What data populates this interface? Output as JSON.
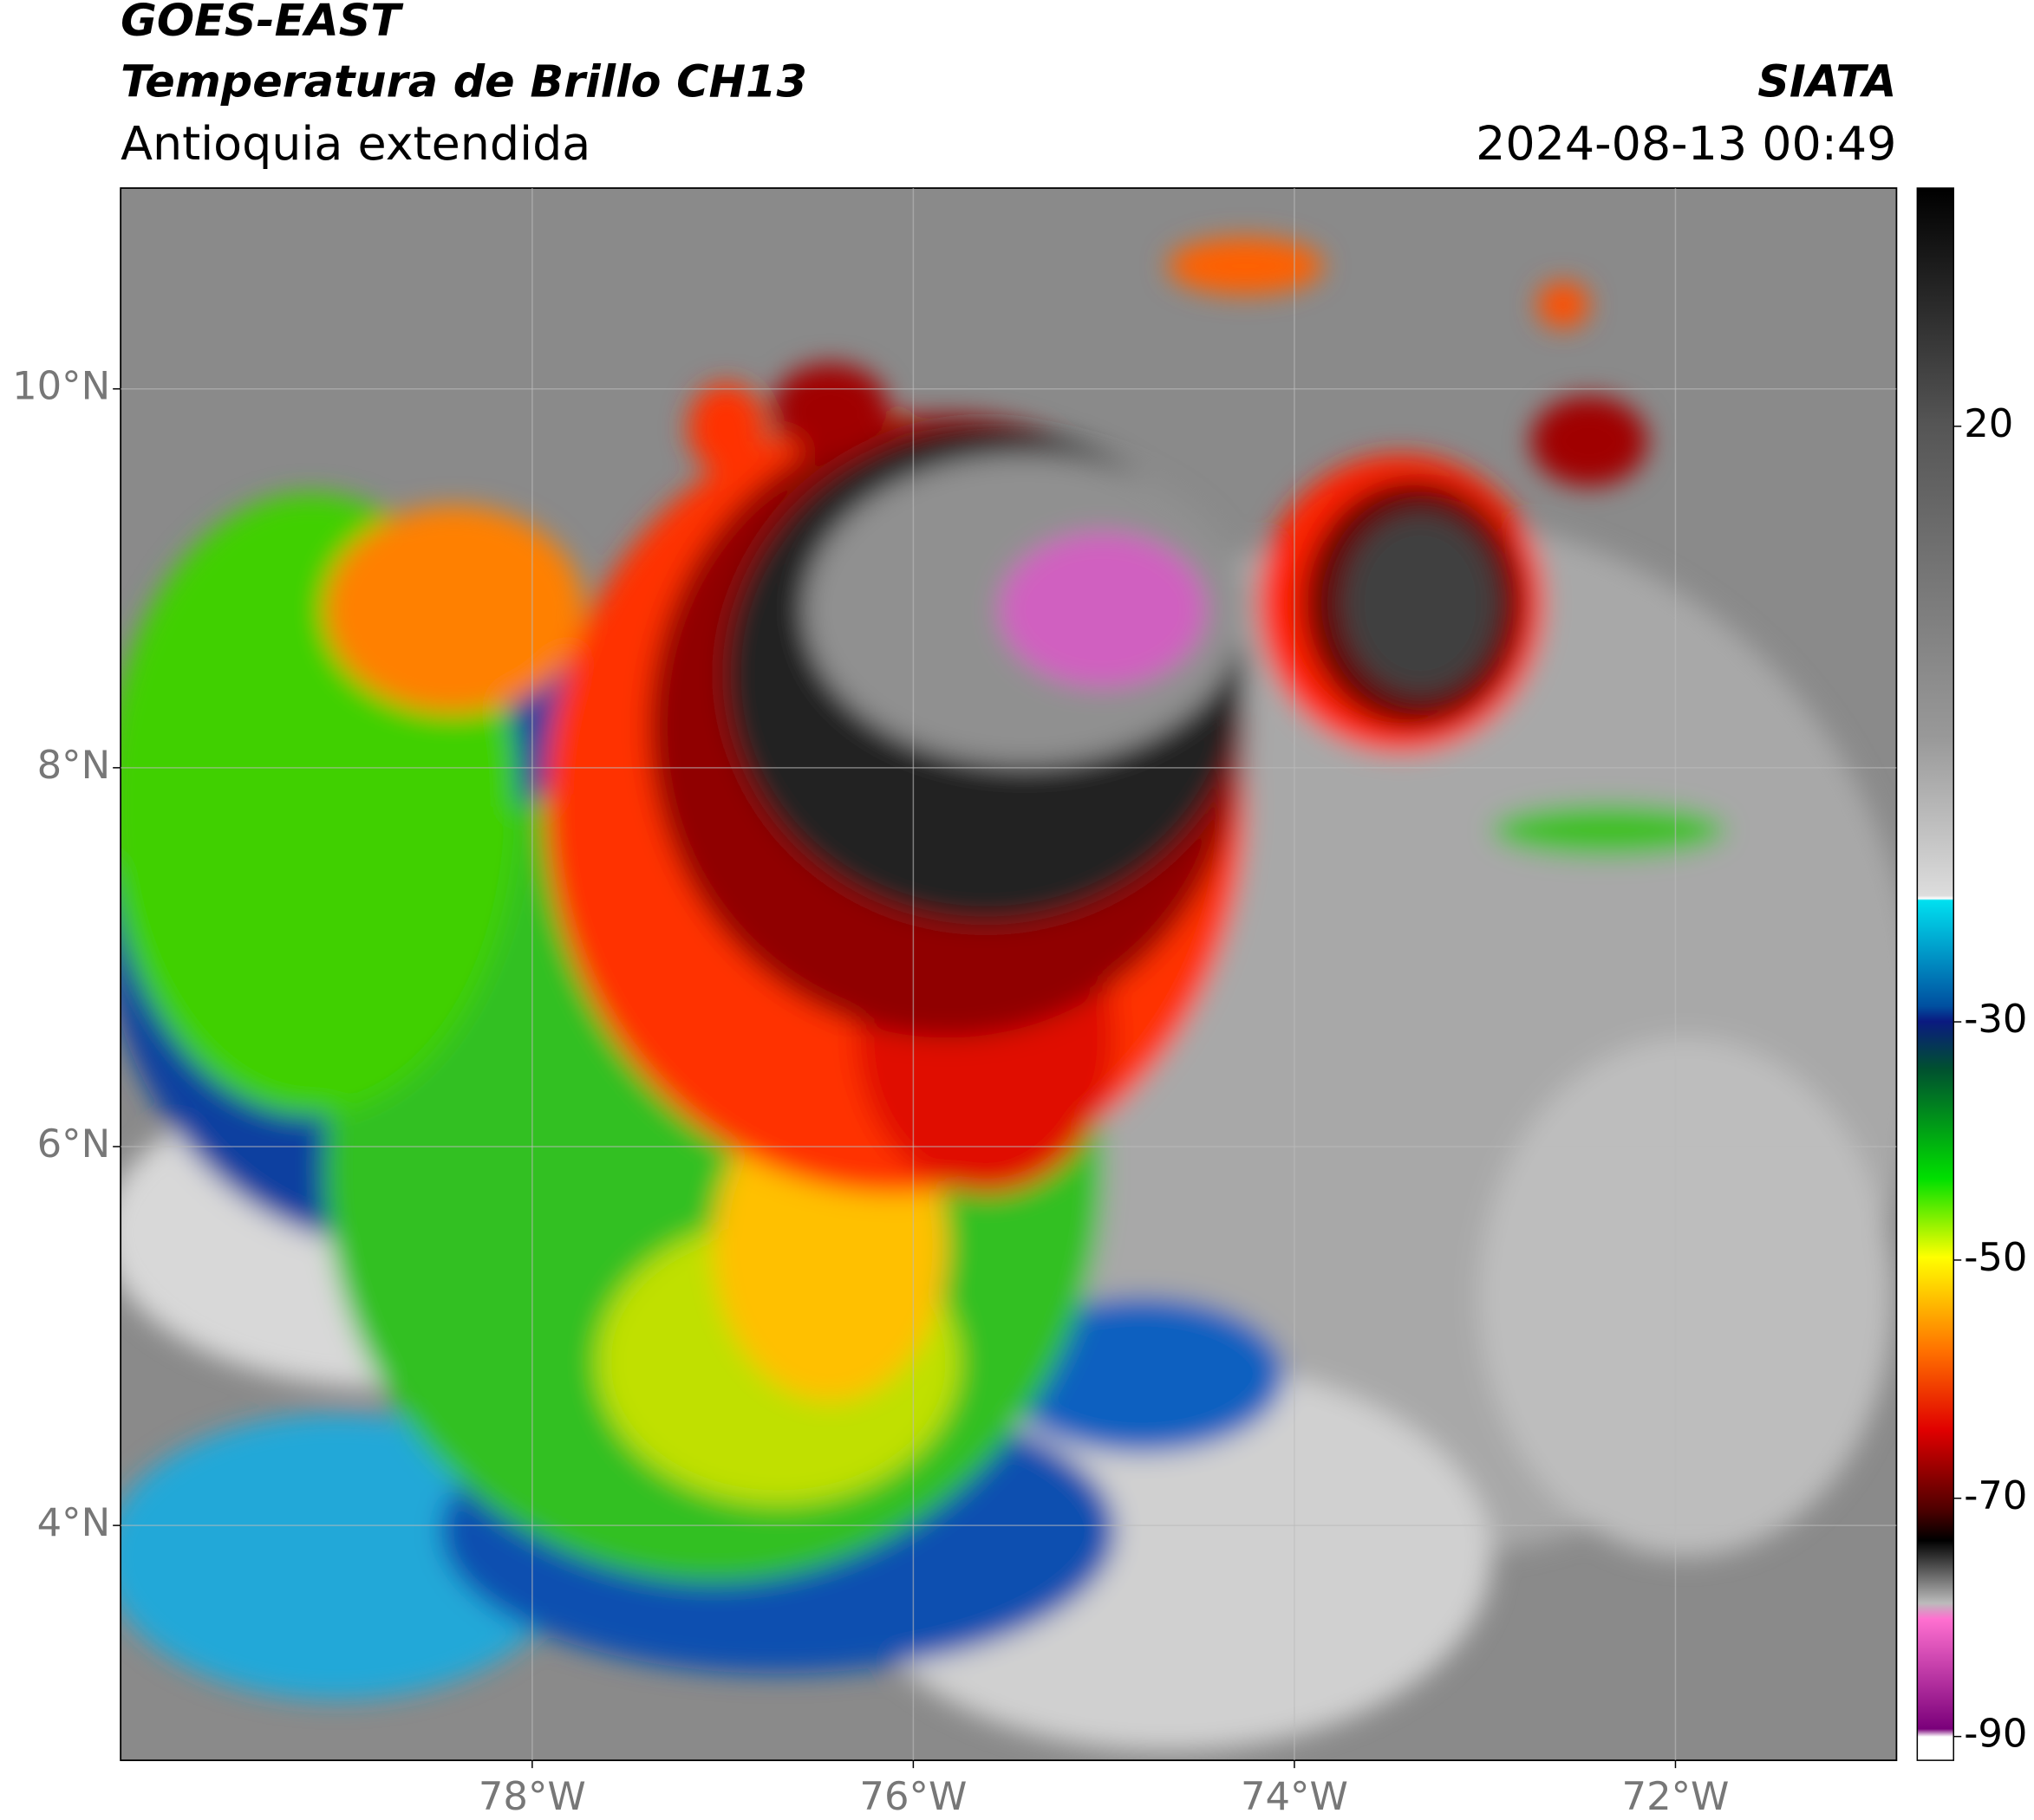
{
  "header": {
    "title": "GOES-EAST",
    "subtitle": "Temperatura de Brillo CH13",
    "region": "Antioquia extendida",
    "source": "SIATA",
    "datetime": "2024-08-13 00:49"
  },
  "map": {
    "xlim": [
      -80.16,
      -70.84
    ],
    "ylim": [
      2.76,
      11.06
    ],
    "xticks": [
      {
        "value": -78,
        "label": "78°W"
      },
      {
        "value": -76,
        "label": "76°W"
      },
      {
        "value": -74,
        "label": "74°W"
      },
      {
        "value": -72,
        "label": "72°W"
      }
    ],
    "yticks": [
      {
        "value": 10,
        "label": "10°N"
      },
      {
        "value": 8,
        "label": "8°N"
      },
      {
        "value": 6,
        "label": "6°N"
      },
      {
        "value": 4,
        "label": "4°N"
      }
    ],
    "grid": true
  },
  "colorbar": {
    "clim": [
      -92,
      40
    ],
    "ticks": [
      20,
      -30,
      -50,
      -70,
      -90
    ]
  }
}
